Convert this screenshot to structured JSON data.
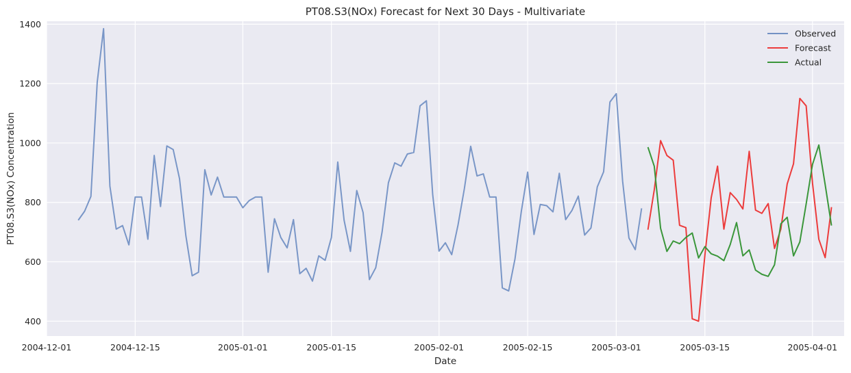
{
  "chart_data": {
    "type": "line",
    "title": "PT08.S3(NOx) Forecast for Next 30 Days - Multivariate",
    "xlabel": "Date",
    "ylabel": "PT08.S3(NOx) Concentration",
    "x_axis_kind": "date",
    "xlim": [
      "2004-12-01",
      "2005-04-06"
    ],
    "ylim": [
      350,
      1410
    ],
    "x_ticks": [
      "2004-12-01",
      "2004-12-15",
      "2005-01-01",
      "2005-01-15",
      "2005-02-01",
      "2005-02-15",
      "2005-03-01",
      "2005-03-15",
      "2005-04-01"
    ],
    "y_ticks": [
      400,
      600,
      800,
      1000,
      1200,
      1400
    ],
    "grid": true,
    "legend_position": "top-right",
    "colors": {
      "background": "#eaeaf2",
      "grid": "#ffffff",
      "observed": "#7391c4",
      "forecast": "#ec3b3b",
      "actual": "#3a963a"
    },
    "series": [
      {
        "name": "Observed",
        "start_date": "2004-12-06",
        "values": [
          740,
          770,
          820,
          1205,
          1385,
          855,
          710,
          722,
          657,
          818,
          818,
          676,
          958,
          786,
          990,
          978,
          880,
          688,
          553,
          565,
          910,
          825,
          885,
          818,
          818,
          818,
          782,
          806,
          818,
          818,
          565,
          745,
          682,
          647,
          742,
          560,
          578,
          535,
          620,
          605,
          682,
          936,
          740,
          635,
          840,
          766,
          540,
          580,
          700,
          866,
          933,
          922,
          963,
          968,
          1125,
          1142,
          826,
          636,
          664,
          624,
          724,
          846,
          989,
          889,
          896,
          818,
          818,
          512,
          502,
          610,
          770,
          902,
          692,
          793,
          789,
          768,
          898,
          742,
          773,
          821,
          690,
          714,
          852,
          903,
          1138,
          1166,
          872,
          680,
          641,
          780
        ]
      },
      {
        "name": "Forecast",
        "start_date": "2005-03-06",
        "values": [
          708,
          842,
          1008,
          958,
          942,
          723,
          715,
          408,
          400,
          622,
          816,
          922,
          710,
          833,
          810,
          778,
          972,
          774,
          763,
          796,
          645,
          710,
          862,
          930,
          1150,
          1125,
          865,
          676,
          614,
          784
        ]
      },
      {
        "name": "Actual",
        "start_date": "2005-03-06",
        "values": [
          986,
          922,
          713,
          635,
          670,
          661,
          682,
          697,
          613,
          651,
          627,
          619,
          604,
          658,
          732,
          620,
          640,
          572,
          558,
          551,
          590,
          728,
          750,
          620,
          667,
          795,
          928,
          993,
          860,
          722
        ]
      }
    ]
  }
}
